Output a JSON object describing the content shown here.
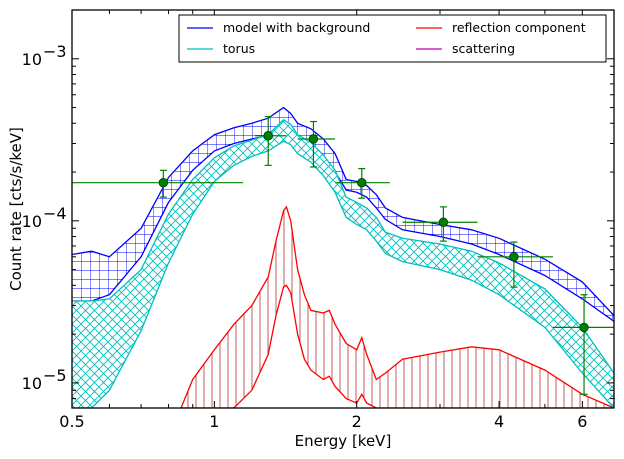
{
  "chart_data": {
    "type": "line",
    "xlabel": "Energy [keV]",
    "ylabel": "Count rate [cts/s/keV]",
    "xscale": "log",
    "yscale": "log",
    "xlim": [
      0.5,
      7.0
    ],
    "ylim": [
      7e-06,
      0.002
    ],
    "xticks": [
      {
        "value": 0.5,
        "label": "0.5"
      },
      {
        "value": 1,
        "label": "1"
      },
      {
        "value": 2,
        "label": "2"
      },
      {
        "value": 4,
        "label": "4"
      },
      {
        "value": 6,
        "label": "6"
      }
    ],
    "yticks": [
      {
        "value": 1e-05,
        "base": "10",
        "exp": "−5"
      },
      {
        "value": 0.0001,
        "base": "10",
        "exp": "−4"
      },
      {
        "value": 0.001,
        "base": "10",
        "exp": "−3"
      }
    ],
    "legend": {
      "placement": "top-right",
      "columns": 2,
      "entries": [
        {
          "label": "model with background",
          "color": "#0000ff"
        },
        {
          "label": "reflection component",
          "color": "#ff0000"
        },
        {
          "label": "torus",
          "color": "#00bfbf"
        },
        {
          "label": "scattering",
          "color": "#bf00bf"
        }
      ]
    },
    "series": [
      {
        "name": "model with background",
        "color": "#0000ff",
        "style": "hatched band",
        "x": [
          0.5,
          0.55,
          0.6,
          0.7,
          0.8,
          0.9,
          1.0,
          1.1,
          1.2,
          1.3,
          1.4,
          1.45,
          1.5,
          1.6,
          1.7,
          1.8,
          1.9,
          2.0,
          2.1,
          2.2,
          2.3,
          2.5,
          3.0,
          3.5,
          4.0,
          5.0,
          6.0,
          7.0
        ],
        "lower": [
          3.2e-05,
          3.2e-05,
          3.5e-05,
          6e-05,
          0.00013,
          0.000205,
          0.00027,
          0.0003,
          0.00032,
          0.000335,
          0.00038,
          0.00036,
          0.00032,
          0.000285,
          0.00025,
          0.0002,
          0.000155,
          0.00015,
          0.00014,
          0.00012,
          0.000102,
          8.8e-05,
          8e-05,
          7.2e-05,
          6.2e-05,
          4.6e-05,
          3.3e-05,
          2.4e-05
        ],
        "upper": [
          6.2e-05,
          6.5e-05,
          6e-05,
          9e-05,
          0.000185,
          0.00027,
          0.00034,
          0.000375,
          0.0004,
          0.00043,
          0.0005,
          0.00046,
          0.0004,
          0.00037,
          0.00032,
          0.00026,
          0.00018,
          0.000175,
          0.000165,
          0.000145,
          0.00012,
          0.000105,
          9.5e-05,
          8.8e-05,
          7.8e-05,
          5.8e-05,
          4.2e-05,
          2.6e-05
        ]
      },
      {
        "name": "torus",
        "color": "#00bfbf",
        "style": "cross-hatched band",
        "x": [
          0.5,
          0.55,
          0.6,
          0.7,
          0.8,
          0.9,
          1.0,
          1.1,
          1.2,
          1.3,
          1.4,
          1.45,
          1.5,
          1.6,
          1.7,
          1.8,
          1.9,
          2.0,
          2.1,
          2.2,
          2.3,
          2.5,
          3.0,
          3.5,
          4.0,
          5.0,
          6.0,
          7.0
        ],
        "lower": [
          7e-06,
          7e-06,
          9e-06,
          2.1e-05,
          5.5e-05,
          0.00011,
          0.000175,
          0.00022,
          0.00025,
          0.00027,
          0.00031,
          0.000295,
          0.00026,
          0.00023,
          0.00019,
          0.00015,
          0.000105,
          9.5e-05,
          8.8e-05,
          7.5e-05,
          6.3e-05,
          5.6e-05,
          5e-05,
          4.3e-05,
          3.5e-05,
          2.2e-05,
          1.15e-05,
          7e-06
        ],
        "upper": [
          3.2e-05,
          3.2e-05,
          3.3e-05,
          5e-05,
          0.00011,
          0.00018,
          0.000245,
          0.00029,
          0.000315,
          0.00034,
          0.00042,
          0.000395,
          0.00034,
          0.000305,
          0.000255,
          0.000205,
          0.00014,
          0.00013,
          0.00012,
          0.000105,
          8.5e-05,
          7.8e-05,
          7.2e-05,
          6.5e-05,
          5.5e-05,
          3.8e-05,
          2.2e-05,
          1.15e-05
        ]
      },
      {
        "name": "reflection component",
        "color": "#ff0000",
        "style": "vertical-hatched band",
        "x": [
          0.85,
          0.9,
          1.0,
          1.1,
          1.2,
          1.3,
          1.35,
          1.4,
          1.42,
          1.45,
          1.5,
          1.55,
          1.6,
          1.7,
          1.75,
          1.8,
          1.9,
          2.0,
          2.05,
          2.1,
          2.2,
          2.3,
          2.5,
          3.0,
          3.5,
          4.0,
          5.0,
          6.0,
          7.0
        ],
        "lower": [
          7e-06,
          7e-06,
          7e-06,
          7e-06,
          9e-06,
          1.5e-05,
          2.6e-05,
          3.9e-05,
          4e-05,
          3.6e-05,
          2e-05,
          1.4e-05,
          1.2e-05,
          1.05e-05,
          1.1e-05,
          9.5e-06,
          8e-06,
          7.5e-06,
          8.5e-06,
          7.5e-06,
          7e-06,
          7e-06,
          7e-06,
          7e-06,
          7e-06,
          7e-06,
          7e-06,
          7e-06,
          7e-06
        ],
        "upper": [
          7e-06,
          1.05e-05,
          1.6e-05,
          2.3e-05,
          3e-05,
          4.5e-05,
          7.5e-05,
          0.000115,
          0.000122,
          0.0001,
          5e-05,
          3.5e-05,
          2.8e-05,
          2.7e-05,
          2.8e-05,
          2.3e-05,
          1.75e-05,
          1.6e-05,
          1.9e-05,
          1.5e-05,
          1.05e-05,
          1.15e-05,
          1.4e-05,
          1.55e-05,
          1.67e-05,
          1.6e-05,
          1.2e-05,
          8.5e-06,
          7e-06
        ]
      },
      {
        "name": "scattering",
        "color": "#bf00bf",
        "style": "band",
        "x": [],
        "lower": [],
        "upper": []
      }
    ],
    "data_points": {
      "color": "#008000",
      "points": [
        {
          "x": 0.78,
          "y": 0.000172,
          "xlo": 0.5,
          "xhi": 1.15,
          "ylo": 0.00014,
          "yhi": 0.000205
        },
        {
          "x": 1.3,
          "y": 0.000335,
          "xlo": 1.22,
          "xhi": 1.42,
          "ylo": 0.00022,
          "yhi": 0.00044
        },
        {
          "x": 1.62,
          "y": 0.00032,
          "xlo": 1.5,
          "xhi": 1.8,
          "ylo": 0.000215,
          "yhi": 0.00041
        },
        {
          "x": 2.05,
          "y": 0.000172,
          "xlo": 1.8,
          "xhi": 2.35,
          "ylo": 0.000138,
          "yhi": 0.00021
        },
        {
          "x": 3.05,
          "y": 9.8e-05,
          "xlo": 2.5,
          "xhi": 3.6,
          "ylo": 7.5e-05,
          "yhi": 0.000122
        },
        {
          "x": 4.3,
          "y": 6e-05,
          "xlo": 3.6,
          "xhi": 5.2,
          "ylo": 3.9e-05,
          "yhi": 7.4e-05
        },
        {
          "x": 6.05,
          "y": 2.2e-05,
          "xlo": 5.2,
          "xhi": 7.0,
          "ylo": 8.5e-06,
          "yhi": 3.5e-05
        }
      ]
    }
  }
}
